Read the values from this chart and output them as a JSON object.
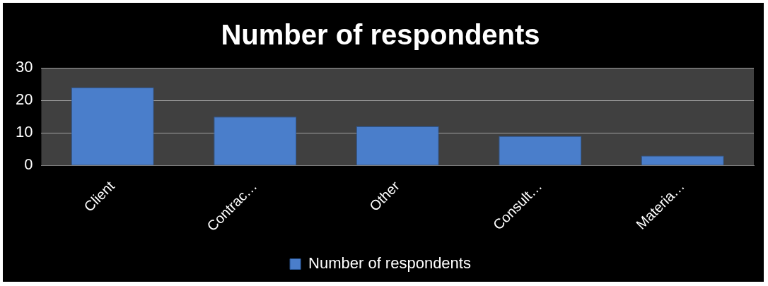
{
  "chart_data": {
    "type": "bar",
    "title": "Number of respondents",
    "categories": [
      "Client",
      "Contrac…",
      "Other",
      "Consult…",
      "Materia…"
    ],
    "series": [
      {
        "name": "Number of respondents",
        "color": "#4a7ecb",
        "values": [
          24,
          15,
          12,
          9,
          3
        ]
      }
    ],
    "ylim": [
      0,
      30
    ],
    "yticks": [
      0,
      10,
      20,
      30
    ],
    "grid": "y",
    "legend": "bottom"
  }
}
